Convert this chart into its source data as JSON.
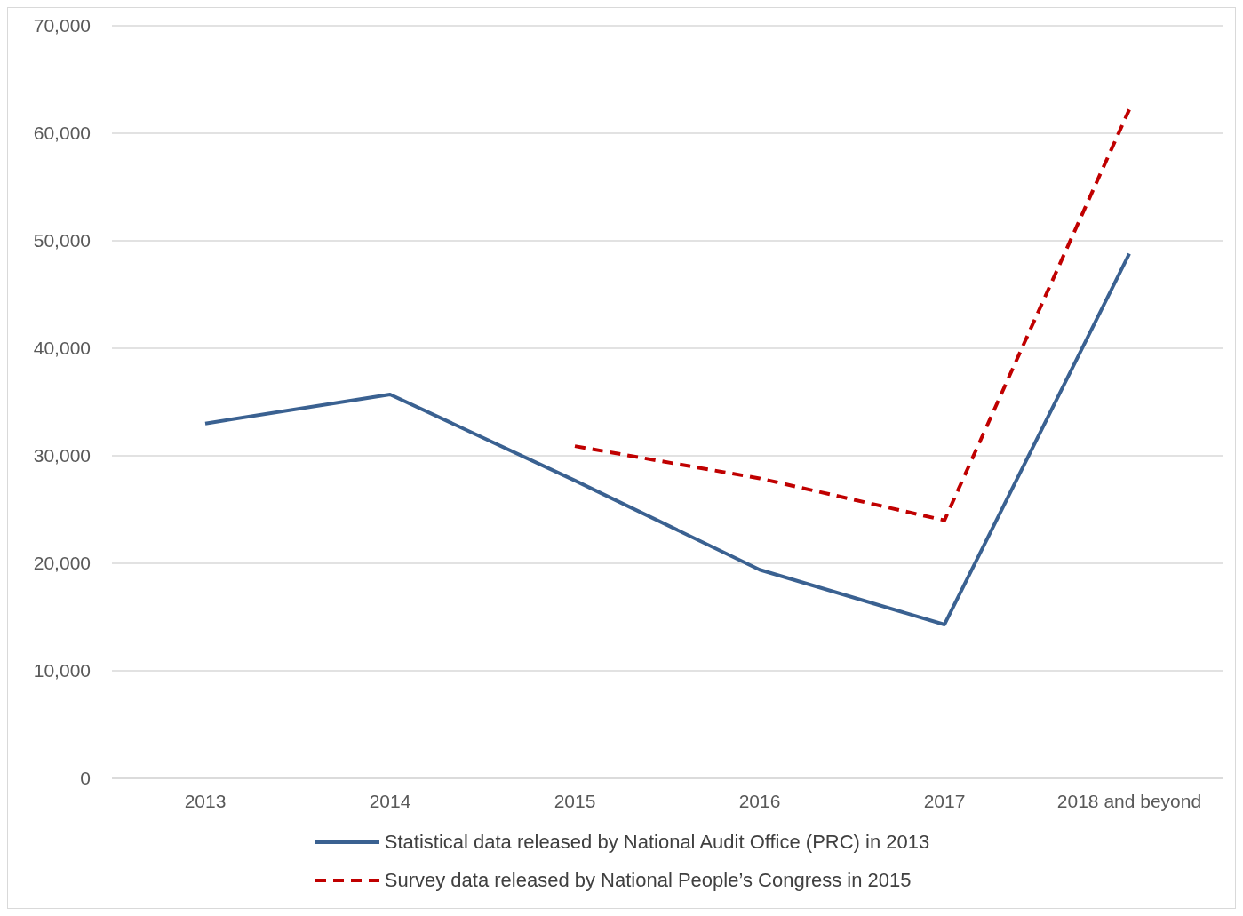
{
  "chart_data": {
    "type": "line",
    "categories": [
      "2013",
      "2014",
      "2015",
      "2016",
      "2017",
      "2018 and beyond"
    ],
    "series": [
      {
        "name": "Statistical data released by National Audit Office (PRC) in 2013",
        "color": "#3a6191",
        "values": [
          33000,
          35700,
          27700,
          19400,
          14300,
          48800
        ],
        "line_style": "solid"
      },
      {
        "name": "Survey data released by National People’s Congress in 2015",
        "color": "#c00000",
        "values": [
          null,
          null,
          30900,
          27900,
          24000,
          62200
        ],
        "line_style": "dashed"
      }
    ],
    "ylim": [
      0,
      70000
    ],
    "yticks": [
      {
        "value": 0,
        "label": "0"
      },
      {
        "value": 10000,
        "label": "10,000"
      },
      {
        "value": 20000,
        "label": "20,000"
      },
      {
        "value": 30000,
        "label": "30,000"
      },
      {
        "value": 40000,
        "label": "40,000"
      },
      {
        "value": 50000,
        "label": "50,000"
      },
      {
        "value": 60000,
        "label": "60,000"
      },
      {
        "value": 70000,
        "label": "70,000"
      }
    ],
    "grid": "y",
    "legend": "bottom",
    "marker": "none"
  }
}
